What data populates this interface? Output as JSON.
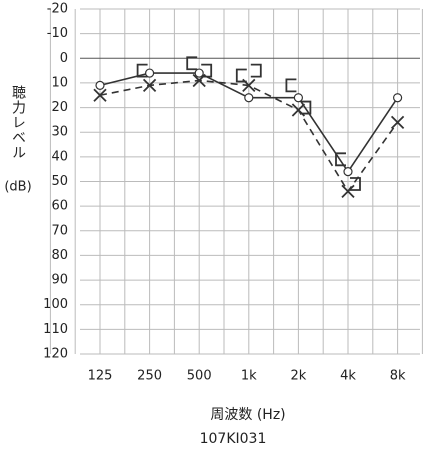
{
  "chart_data": {
    "type": "audiogram",
    "y_label": "聴力レベル",
    "y_unit": "(dB)",
    "x_label": "周波数 (Hz)",
    "caption": "107KI031",
    "categories": [
      "125",
      "250",
      "500",
      "1k",
      "2k",
      "4k",
      "8k"
    ],
    "ylim": [
      -20,
      120
    ],
    "y_inverted": true,
    "yticks": [
      -20,
      -10,
      0,
      10,
      20,
      30,
      40,
      50,
      60,
      70,
      80,
      90,
      100,
      110,
      120
    ],
    "grid": true,
    "series": [
      {
        "marker": "circle",
        "line": "solid",
        "color": "#333333",
        "values": [
          11,
          6,
          6,
          16,
          16,
          46,
          16
        ]
      },
      {
        "marker": "cross",
        "line": "dashed",
        "color": "#333333",
        "values": [
          15,
          11,
          9,
          11,
          21,
          54,
          26
        ]
      },
      {
        "marker": "bracket-left",
        "line": "none",
        "color": "#333333",
        "values": [
          null,
          5,
          2,
          7,
          11,
          41,
          null
        ]
      },
      {
        "marker": "bracket-right",
        "line": "none",
        "color": "#333333",
        "values": [
          null,
          null,
          5,
          5,
          20,
          51,
          null
        ]
      }
    ]
  }
}
